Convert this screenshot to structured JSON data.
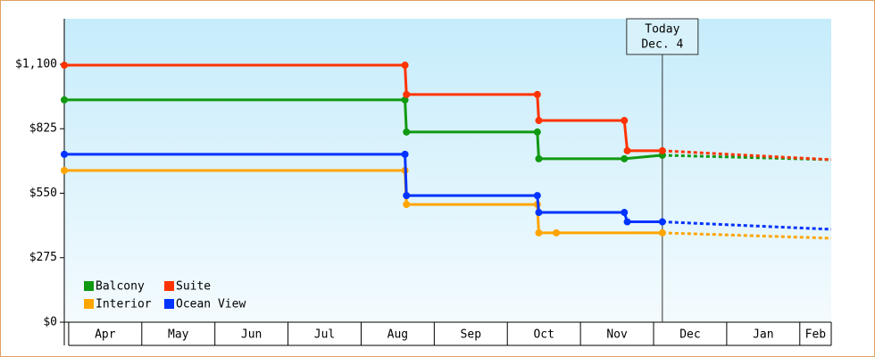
{
  "chart_data": {
    "type": "line",
    "today_label": [
      "Today",
      "Dec. 4"
    ],
    "today_x": 8.12,
    "categories": [
      "Apr",
      "May",
      "Jun",
      "Jul",
      "Aug",
      "Sep",
      "Oct",
      "Nov",
      "Dec",
      "Jan",
      "Feb"
    ],
    "xlim": [
      -0.06,
      10.43
    ],
    "ylim": [
      0,
      1294
    ],
    "yticks": [
      {
        "value": 0,
        "label": "$0"
      },
      {
        "value": 275,
        "label": "$275"
      },
      {
        "value": 550,
        "label": "$550"
      },
      {
        "value": 825,
        "label": "$825"
      },
      {
        "value": 1100,
        "label": "$1,100"
      }
    ],
    "series": [
      {
        "name": "Balcony",
        "color": "#119911",
        "x": [
          -0.06,
          4.6,
          4.62,
          6.41,
          6.43,
          7.6,
          8.12
        ],
        "values": [
          948,
          948,
          811,
          811,
          697,
          697,
          712
        ],
        "forecast": {
          "x": [
            8.12,
            10.43
          ],
          "values": [
            712,
            693
          ]
        }
      },
      {
        "name": "Suite",
        "color": "#ff3300",
        "x": [
          -0.06,
          4.6,
          4.62,
          6.41,
          6.43,
          7.6,
          7.64,
          8.12
        ],
        "values": [
          1096,
          1096,
          971,
          971,
          860,
          860,
          731,
          731
        ],
        "forecast": {
          "x": [
            8.12,
            10.43
          ],
          "values": [
            731,
            693
          ]
        }
      },
      {
        "name": "Interior",
        "color": "#ffa500",
        "x": [
          -0.06,
          4.6,
          4.62,
          6.41,
          6.43,
          6.67,
          8.12
        ],
        "values": [
          647,
          647,
          502,
          502,
          381,
          381,
          381
        ],
        "forecast": {
          "x": [
            8.12,
            10.43
          ],
          "values": [
            381,
            358
          ]
        }
      },
      {
        "name": "Ocean View",
        "color": "#0033ff",
        "x": [
          -0.06,
          4.6,
          4.62,
          6.41,
          6.43,
          7.6,
          7.64,
          8.12
        ],
        "values": [
          716,
          716,
          540,
          540,
          468,
          468,
          428,
          428
        ],
        "forecast": {
          "x": [
            8.12,
            10.43
          ],
          "values": [
            428,
            396
          ]
        }
      }
    ]
  }
}
